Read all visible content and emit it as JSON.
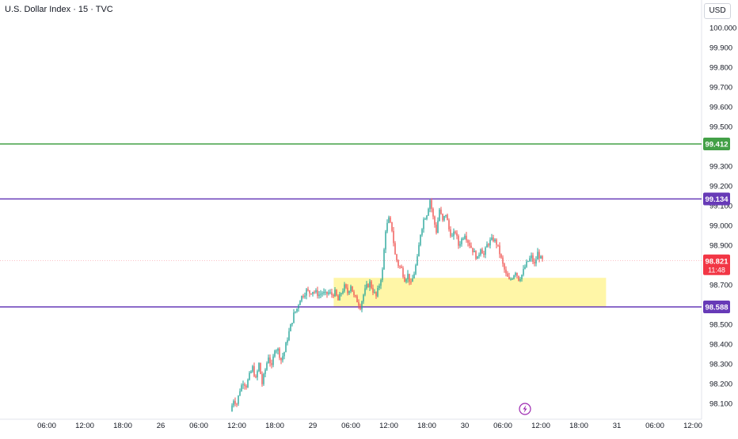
{
  "header": {
    "title": "U.S. Dollar Index · 15 · TVC",
    "currency": "USD"
  },
  "colors": {
    "bull": "#26a69a",
    "bear": "#ef5350",
    "green_line": "#43a047",
    "purple_line": "#673ab7",
    "zone_fill": "#fff59d",
    "current_price": "#f23645",
    "text": "#131722"
  },
  "price_tag": {
    "value": "98.821",
    "countdown": "11:48"
  },
  "indicator_icon": "lightning-icon",
  "chart_data": {
    "type": "candlestick",
    "title": "U.S. Dollar Index · 15 · TVC",
    "y_ticks": [
      "100.000",
      "99.900",
      "99.800",
      "99.700",
      "99.600",
      "99.500",
      "99.300",
      "99.200",
      "99.100",
      "99.000",
      "98.900",
      "98.700",
      "98.500",
      "98.400",
      "98.300",
      "98.200",
      "98.100"
    ],
    "x_ticks": [
      {
        "label": "06:00",
        "t": 6
      },
      {
        "label": "12:00",
        "t": 12
      },
      {
        "label": "18:00",
        "t": 18
      },
      {
        "label": "26",
        "t": 24
      },
      {
        "label": "06:00",
        "t": 30
      },
      {
        "label": "12:00",
        "t": 36
      },
      {
        "label": "18:00",
        "t": 42
      },
      {
        "label": "29",
        "t": 48
      },
      {
        "label": "06:00",
        "t": 54
      },
      {
        "label": "12:00",
        "t": 60
      },
      {
        "label": "18:00",
        "t": 66
      },
      {
        "label": "30",
        "t": 72
      },
      {
        "label": "06:00",
        "t": 78
      },
      {
        "label": "12:00",
        "t": 84
      },
      {
        "label": "18:00",
        "t": 90
      },
      {
        "label": "31",
        "t": 96
      },
      {
        "label": "06:00",
        "t": 102
      },
      {
        "label": "12:00",
        "t": 108
      }
    ],
    "horizontal_lines": [
      {
        "price": 99.412,
        "label": "99.412",
        "color": "#43a047"
      },
      {
        "price": 99.134,
        "label": "99.134",
        "color": "#673ab7"
      },
      {
        "price": 98.588,
        "label": "98.588",
        "color": "#673ab7"
      }
    ],
    "current_price": 98.821,
    "zone": {
      "t_start": 51.3,
      "t_end": 94.3,
      "price_high": 98.735,
      "price_low": 98.588
    },
    "price_path": [
      [
        35.0,
        98.06
      ],
      [
        35.5,
        98.12
      ],
      [
        36.0,
        98.1
      ],
      [
        36.5,
        98.17
      ],
      [
        37.0,
        98.21
      ],
      [
        37.5,
        98.19
      ],
      [
        38.0,
        98.24
      ],
      [
        38.5,
        98.28
      ],
      [
        39.0,
        98.22
      ],
      [
        39.5,
        98.3
      ],
      [
        40.0,
        98.2
      ],
      [
        40.5,
        98.27
      ],
      [
        41.0,
        98.34
      ],
      [
        41.5,
        98.28
      ],
      [
        42.0,
        98.38
      ],
      [
        42.5,
        98.37
      ],
      [
        43.0,
        98.32
      ],
      [
        43.5,
        98.36
      ],
      [
        44.0,
        98.43
      ],
      [
        44.5,
        98.49
      ],
      [
        45.0,
        98.55
      ],
      [
        45.5,
        98.58
      ],
      [
        46.0,
        98.63
      ],
      [
        46.5,
        98.65
      ],
      [
        47.0,
        98.67
      ],
      [
        47.5,
        98.66
      ],
      [
        48.0,
        98.67
      ],
      [
        48.5,
        98.66
      ],
      [
        49.0,
        98.65
      ],
      [
        49.5,
        98.66
      ],
      [
        50.0,
        98.65
      ],
      [
        50.5,
        98.66
      ],
      [
        51.0,
        98.65
      ],
      [
        51.5,
        98.66
      ],
      [
        52.0,
        98.62
      ],
      [
        52.5,
        98.66
      ],
      [
        53.0,
        98.69
      ],
      [
        53.5,
        98.66
      ],
      [
        54.0,
        98.7
      ],
      [
        54.5,
        98.64
      ],
      [
        55.0,
        98.62
      ],
      [
        55.5,
        98.59
      ],
      [
        56.0,
        98.65
      ],
      [
        56.5,
        98.69
      ],
      [
        57.0,
        98.71
      ],
      [
        57.5,
        98.67
      ],
      [
        58.0,
        98.64
      ],
      [
        58.5,
        98.7
      ],
      [
        59.0,
        98.77
      ],
      [
        59.5,
        98.98
      ],
      [
        60.0,
        99.03
      ],
      [
        60.5,
        98.98
      ],
      [
        61.0,
        98.85
      ],
      [
        61.5,
        98.8
      ],
      [
        62.0,
        98.78
      ],
      [
        62.5,
        98.73
      ],
      [
        63.0,
        98.75
      ],
      [
        63.5,
        98.7
      ],
      [
        64.0,
        98.76
      ],
      [
        64.5,
        98.83
      ],
      [
        65.0,
        98.96
      ],
      [
        65.5,
        99.03
      ],
      [
        66.0,
        99.06
      ],
      [
        66.5,
        99.13
      ],
      [
        67.0,
        99.04
      ],
      [
        67.5,
        98.97
      ],
      [
        68.0,
        99.08
      ],
      [
        68.5,
        99.02
      ],
      [
        69.0,
        99.06
      ],
      [
        69.5,
        98.98
      ],
      [
        70.0,
        98.94
      ],
      [
        70.5,
        98.97
      ],
      [
        71.0,
        98.9
      ],
      [
        71.5,
        98.93
      ],
      [
        72.0,
        98.96
      ],
      [
        72.5,
        98.92
      ],
      [
        73.0,
        98.89
      ],
      [
        73.5,
        98.86
      ],
      [
        74.0,
        98.83
      ],
      [
        74.5,
        98.89
      ],
      [
        75.0,
        98.85
      ],
      [
        75.5,
        98.9
      ],
      [
        76.0,
        98.92
      ],
      [
        76.5,
        98.93
      ],
      [
        77.0,
        98.91
      ],
      [
        77.5,
        98.86
      ],
      [
        78.0,
        98.8
      ],
      [
        78.5,
        98.75
      ],
      [
        79.0,
        98.72
      ],
      [
        79.5,
        98.74
      ],
      [
        80.0,
        98.77
      ],
      [
        80.5,
        98.73
      ],
      [
        81.0,
        98.75
      ],
      [
        81.5,
        98.79
      ],
      [
        82.0,
        98.82
      ],
      [
        82.5,
        98.84
      ],
      [
        83.0,
        98.8
      ],
      [
        83.5,
        98.86
      ],
      [
        84.0,
        98.83
      ],
      [
        84.3,
        98.82
      ]
    ]
  }
}
